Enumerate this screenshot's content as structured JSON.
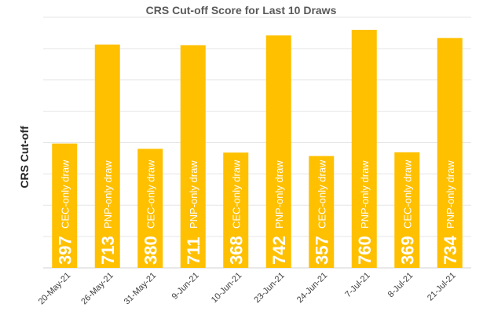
{
  "chart_data": {
    "type": "bar",
    "title": "CRS Cut-off Score for Last 10 Draws",
    "xlabel": "",
    "ylabel": "CRS Cut-off",
    "categories": [
      "20-May-21",
      "26-May-21",
      "31-May-21",
      "9-Jun-21",
      "10-Jun-21",
      "23-Jun-21",
      "24-Jun-21",
      "7-Jul-21",
      "8-Jul-21",
      "21-Jul-21"
    ],
    "values": [
      397,
      713,
      380,
      711,
      368,
      742,
      357,
      760,
      369,
      734
    ],
    "annotations": [
      "CEC-only draw",
      "PNP-only draw",
      "CEC-only draw",
      "PNP-only draw",
      "CEC-only draw",
      "PNP-only draw",
      "CEC-only draw",
      "PNP-only draw",
      "CEC-only draw",
      "PNP-only draw"
    ],
    "ylim": [
      0,
      800
    ],
    "grid": true,
    "legend": "none",
    "colors": {
      "bar": "#FFC000",
      "label": "#FFFFFF"
    }
  }
}
